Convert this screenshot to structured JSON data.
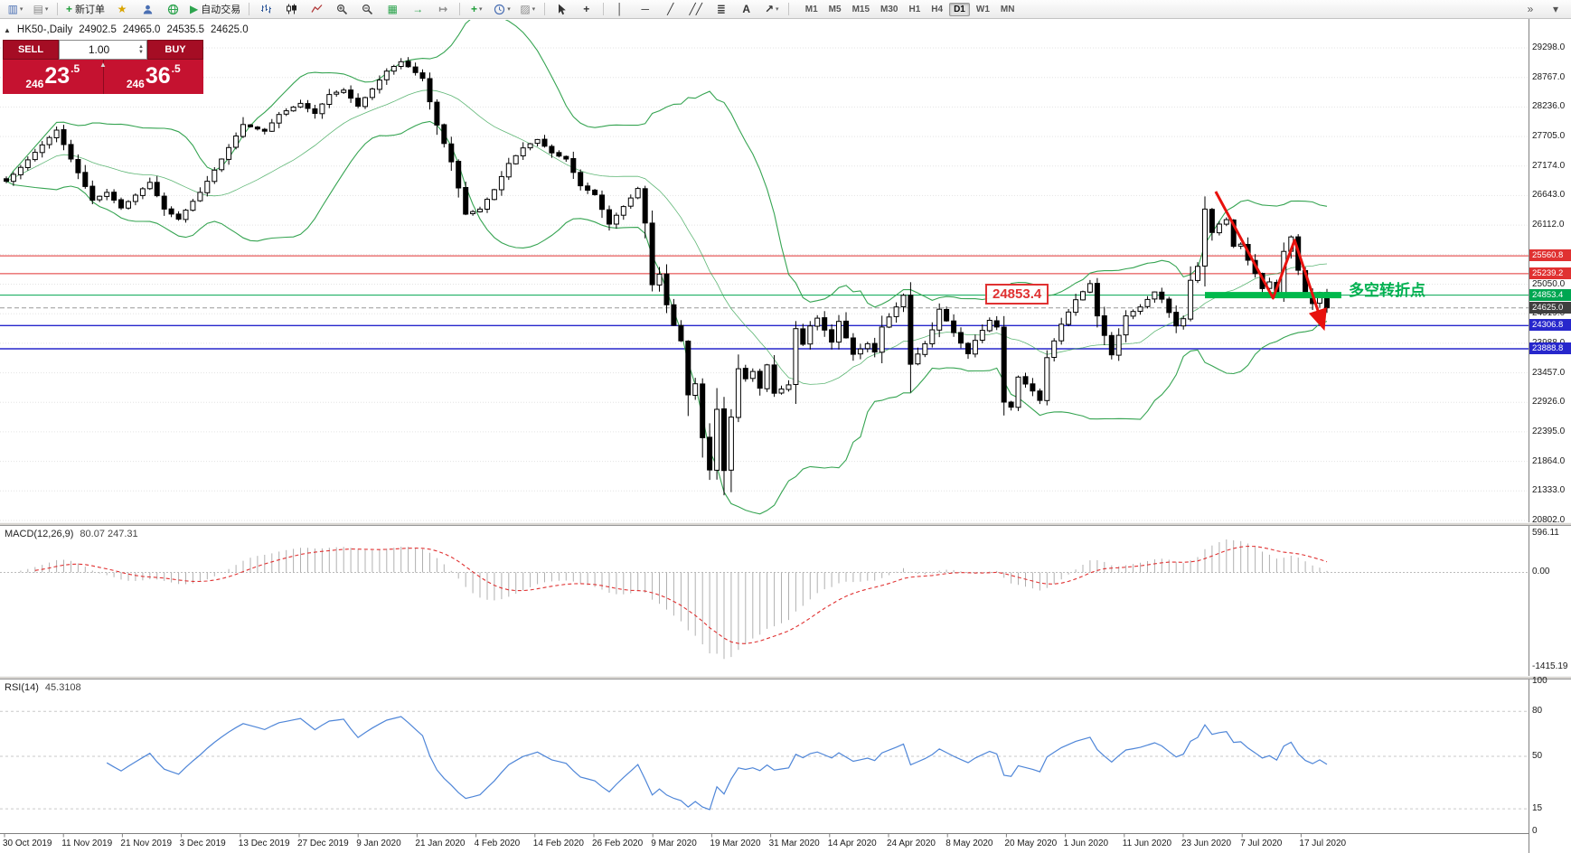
{
  "icons": {
    "caret": "▾",
    "collapse": "▲",
    "spread_marker": "▲",
    "spin_up": "▲",
    "spin_down": "▼"
  },
  "toolbar": {
    "items": [
      {
        "name": "new-chart-icon",
        "glyph": "▥",
        "color": "#4a6fb3",
        "caret": true
      },
      {
        "name": "chart-profiles-icon",
        "glyph": "▤",
        "color": "#8a8a8a",
        "caret": true
      },
      {
        "type": "sep"
      },
      {
        "name": "new-order-button",
        "glyph": "+",
        "color": "#1f9d3a",
        "label": "新订单"
      },
      {
        "name": "market-watch-icon",
        "glyph": "★",
        "color": "#d9a400"
      },
      {
        "name": "accounts-icon",
        "svg": "person"
      },
      {
        "name": "community-icon",
        "svg": "globe"
      },
      {
        "name": "autotrading-button",
        "glyph": "▶",
        "color": "#2da44e",
        "label": "自动交易"
      },
      {
        "type": "sep"
      },
      {
        "name": "bar-chart-icon",
        "svg": "bars"
      },
      {
        "name": "candlestick-chart-icon",
        "svg": "candles"
      },
      {
        "name": "line-chart-icon",
        "svg": "line"
      },
      {
        "name": "zoom-in-icon",
        "svg": "zoomin"
      },
      {
        "name": "zoom-out-icon",
        "svg": "zoomout"
      },
      {
        "name": "tile-windows-icon",
        "glyph": "▦",
        "color": "#2da44e"
      },
      {
        "name": "auto-scroll-icon",
        "glyph": "→",
        "color": "#2da44e"
      },
      {
        "name": "chart-shift-icon",
        "glyph": "↦",
        "color": "#8a8a8a"
      },
      {
        "type": "sep"
      },
      {
        "name": "indicators-icon",
        "glyph": "+",
        "color": "#1f9d3a",
        "caret": true
      },
      {
        "name": "periods-icon",
        "svg": "clock",
        "caret": true
      },
      {
        "name": "templates-icon",
        "glyph": "▨",
        "color": "#8a8a8a",
        "caret": true
      },
      {
        "type": "sep"
      },
      {
        "name": "cursor-icon",
        "svg": "cursor"
      },
      {
        "name": "crosshair-icon",
        "glyph": "+",
        "color": "#333333"
      },
      {
        "type": "sep"
      },
      {
        "name": "vertical-line-icon",
        "glyph": "│",
        "color": "#333333"
      },
      {
        "name": "horizontal-line-icon",
        "glyph": "─",
        "color": "#333333"
      },
      {
        "name": "trendline-icon",
        "glyph": "╱",
        "color": "#333333"
      },
      {
        "name": "channel-icon",
        "glyph": "╱╱",
        "color": "#333333"
      },
      {
        "name": "fibonacci-icon",
        "glyph": "≣",
        "color": "#333333"
      },
      {
        "name": "text-icon",
        "glyph": "A",
        "color": "#333333"
      },
      {
        "name": "arrows-icon",
        "glyph": "↗",
        "color": "#333333",
        "caret": true
      },
      {
        "type": "sep"
      }
    ],
    "timeframes": {
      "options": [
        "M1",
        "M5",
        "M15",
        "M30",
        "H1",
        "H4",
        "D1",
        "W1",
        "MN"
      ],
      "active": "D1"
    },
    "right_items": [
      {
        "name": "toolbar-overflow-icon",
        "glyph": "»",
        "color": "#555555"
      },
      {
        "name": "toolbar-customize-icon",
        "glyph": "▾",
        "color": "#555555"
      }
    ]
  },
  "chart": {
    "symbol_period": "HK50-,Daily",
    "ohlc": {
      "open": "24902.5",
      "high": "24965.0",
      "low": "24535.5",
      "close": "24625.0"
    }
  },
  "trade_panel": {
    "sell_label": "SELL",
    "buy_label": "BUY",
    "volume": "1.00",
    "sell_price": "24623.5",
    "buy_price": "24636.5",
    "sell_parts": {
      "pre": "246",
      "big": "23",
      "suf": ".5"
    },
    "buy_parts": {
      "pre": "246",
      "big": "36",
      "suf": ".5"
    }
  },
  "annotations": {
    "price_flag": "24853.4",
    "note_text": "多空转折点",
    "note_color": "#00b050"
  },
  "indicators": {
    "macd": {
      "label": "MACD(12,26,9)",
      "values": "80.07 247.31",
      "axis": [
        "596.11",
        "0.00",
        "-1415.19"
      ]
    },
    "rsi": {
      "label": "RSI(14)",
      "value": "45.3108",
      "axis": [
        "100",
        "80",
        "50",
        "15",
        "0"
      ],
      "levels": [
        80,
        50,
        15
      ]
    }
  },
  "colors": {
    "bollinger": "#36a452",
    "candle_up": "#ffffff",
    "candle_down": "#000000",
    "macd_hist": "#b0b0b0",
    "macd_signal": "#e03131",
    "rsi": "#4f86d8",
    "grid": "#e3e3e3"
  },
  "chart_data": {
    "type": "candlestick",
    "symbol": "HK50-",
    "period": "Daily",
    "candles_count": 185,
    "close_waypoints": [
      [
        0,
        26900
      ],
      [
        2,
        27150
      ],
      [
        4,
        27420
      ],
      [
        7,
        27820
      ],
      [
        9,
        27300
      ],
      [
        12,
        26560
      ],
      [
        14,
        26700
      ],
      [
        16,
        26420
      ],
      [
        18,
        26650
      ],
      [
        20,
        26880
      ],
      [
        22,
        26400
      ],
      [
        24,
        26220
      ],
      [
        27,
        26700
      ],
      [
        30,
        27300
      ],
      [
        33,
        27920
      ],
      [
        36,
        27800
      ],
      [
        38,
        28100
      ],
      [
        41,
        28300
      ],
      [
        43,
        28120
      ],
      [
        45,
        28460
      ],
      [
        47,
        28540
      ],
      [
        49,
        28250
      ],
      [
        51,
        28560
      ],
      [
        53,
        28880
      ],
      [
        55,
        29050
      ],
      [
        56,
        28960
      ],
      [
        58,
        28750
      ],
      [
        60,
        27910
      ],
      [
        62,
        27250
      ],
      [
        64,
        26310
      ],
      [
        66,
        26400
      ],
      [
        68,
        26750
      ],
      [
        70,
        27220
      ],
      [
        72,
        27500
      ],
      [
        74,
        27650
      ],
      [
        76,
        27410
      ],
      [
        78,
        27300
      ],
      [
        80,
        26820
      ],
      [
        82,
        26660
      ],
      [
        84,
        26130
      ],
      [
        85,
        26290
      ],
      [
        87,
        26600
      ],
      [
        88,
        26770
      ],
      [
        89,
        26150
      ],
      [
        90,
        25040
      ],
      [
        91,
        25230
      ],
      [
        92,
        24680
      ],
      [
        93,
        24310
      ],
      [
        94,
        24030
      ],
      [
        95,
        23060
      ],
      [
        96,
        23260
      ],
      [
        97,
        22290
      ],
      [
        98,
        21710
      ],
      [
        99,
        22800
      ],
      [
        100,
        21700
      ],
      [
        101,
        22660
      ],
      [
        102,
        23530
      ],
      [
        103,
        23350
      ],
      [
        104,
        23480
      ],
      [
        105,
        23180
      ],
      [
        106,
        23600
      ],
      [
        107,
        23090
      ],
      [
        109,
        23240
      ],
      [
        110,
        24250
      ],
      [
        111,
        23970
      ],
      [
        112,
        24300
      ],
      [
        113,
        24440
      ],
      [
        115,
        24010
      ],
      [
        116,
        24380
      ],
      [
        118,
        23790
      ],
      [
        120,
        23980
      ],
      [
        121,
        23830
      ],
      [
        122,
        24280
      ],
      [
        124,
        24640
      ],
      [
        125,
        24850
      ],
      [
        126,
        23610
      ],
      [
        128,
        23980
      ],
      [
        129,
        24230
      ],
      [
        130,
        24600
      ],
      [
        132,
        24180
      ],
      [
        134,
        23800
      ],
      [
        135,
        24040
      ],
      [
        137,
        24400
      ],
      [
        138,
        24280
      ],
      [
        139,
        22930
      ],
      [
        140,
        22840
      ],
      [
        141,
        23380
      ],
      [
        143,
        23130
      ],
      [
        144,
        22960
      ],
      [
        145,
        23730
      ],
      [
        147,
        24330
      ],
      [
        149,
        24770
      ],
      [
        151,
        25060
      ],
      [
        152,
        24480
      ],
      [
        154,
        23780
      ],
      [
        156,
        24480
      ],
      [
        158,
        24640
      ],
      [
        160,
        24910
      ],
      [
        161,
        24780
      ],
      [
        163,
        24300
      ],
      [
        164,
        24430
      ],
      [
        165,
        25120
      ],
      [
        166,
        25370
      ],
      [
        167,
        26400
      ],
      [
        168,
        25980
      ],
      [
        169,
        26130
      ],
      [
        170,
        26210
      ],
      [
        171,
        25730
      ],
      [
        172,
        25770
      ],
      [
        173,
        25480
      ],
      [
        174,
        25240
      ],
      [
        175,
        24970
      ],
      [
        176,
        25090
      ],
      [
        177,
        24870
      ],
      [
        178,
        25640
      ],
      [
        179,
        25900
      ],
      [
        180,
        25300
      ],
      [
        181,
        24900
      ],
      [
        182,
        24700
      ],
      [
        183,
        24900
      ],
      [
        184,
        24625
      ]
    ],
    "last_candle": {
      "open": 24902.5,
      "high": 24965.0,
      "low": 24535.5,
      "close": 24625.0
    },
    "bollinger": {
      "period": 20,
      "deviation": 2
    },
    "price_axis_labels": [
      "29298.0",
      "28767.0",
      "28236.0",
      "27705.0",
      "27174.0",
      "26643.0",
      "26112.0",
      "25581.0",
      "25050.0",
      "24519.0",
      "23988.0",
      "23457.0",
      "22926.0",
      "22395.0",
      "21864.0",
      "21333.0",
      "20802.0"
    ],
    "price_line_labels": [
      {
        "value": "25560.8",
        "bg": "#e03131"
      },
      {
        "value": "25239.2",
        "bg": "#e03131"
      },
      {
        "value": "24853.4",
        "bg": "#00a651"
      },
      {
        "value": "24625.0",
        "bg": "#3f3f3f"
      },
      {
        "value": "24306.8",
        "bg": "#2727cc"
      },
      {
        "value": "23888.8",
        "bg": "#2727cc"
      }
    ],
    "hlines": [
      {
        "price": 25560.8,
        "color": "#e03131",
        "width": 1
      },
      {
        "price": 25239.2,
        "color": "#e03131",
        "width": 1
      },
      {
        "price": 24853.4,
        "color": "#00a651",
        "width": 1
      },
      {
        "price": 24306.8,
        "color": "#2727cc",
        "width": 1.4
      },
      {
        "price": 23888.8,
        "color": "#2727cc",
        "width": 1.4
      },
      {
        "price": 24625.0,
        "color": "#999999",
        "width": 1,
        "dash": true
      }
    ],
    "highlight_bar": {
      "price": 24853.4,
      "from_candle": 167,
      "to_candle": 186,
      "color": "#00b94c",
      "thickness": 7
    },
    "zigzag": {
      "color": "#e8120e",
      "width": 3,
      "points": [
        [
          168.5,
          26715
        ],
        [
          176.5,
          24800
        ],
        [
          179.5,
          25840
        ],
        [
          183.5,
          24280
        ]
      ]
    },
    "dates": [
      "30 Oct 2019",
      "11 Nov 2019",
      "21 Nov 2019",
      "3 Dec 2019",
      "13 Dec 2019",
      "27 Dec 2019",
      "9 Jan 2020",
      "21 Jan 2020",
      "4 Feb 2020",
      "14 Feb 2020",
      "26 Feb 2020",
      "9 Mar 2020",
      "19 Mar 2020",
      "31 Mar 2020",
      "14 Apr 2020",
      "24 Apr 2020",
      "8 May 2020",
      "20 May 2020",
      "1 Jun 2020",
      "11 Jun 2020",
      "23 Jun 2020",
      "7 Jul 2020",
      "17 Jul 2020"
    ]
  }
}
